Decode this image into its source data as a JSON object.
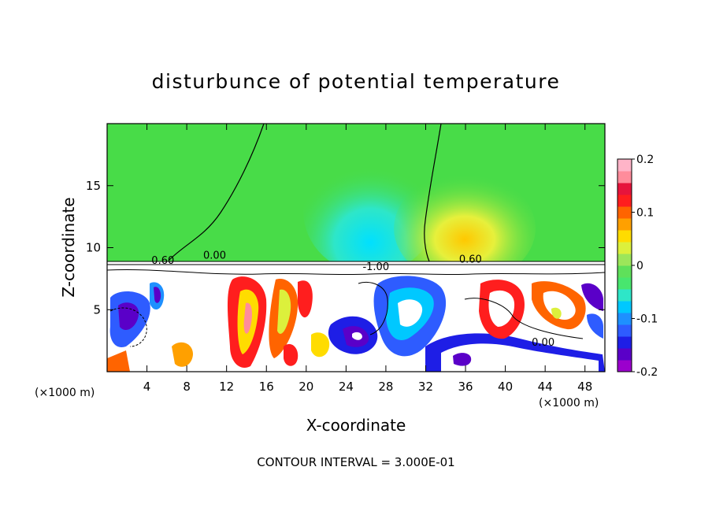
{
  "chart_data": {
    "type": "heatmap",
    "title": "disturbunce of potential temperature",
    "xlabel": "X-coordinate",
    "ylabel": "Z-coordinate",
    "x_unit": "(×1000 m)",
    "y_unit": "(×1000 m)",
    "xlim": [
      0,
      50
    ],
    "ylim": [
      0,
      20
    ],
    "x_ticks": [
      4,
      8,
      12,
      16,
      20,
      24,
      28,
      32,
      36,
      40,
      44,
      48
    ],
    "y_ticks": [
      5,
      10,
      15
    ],
    "colorbar": {
      "range": [
        -0.2,
        0.2
      ],
      "tick_values": [
        0.2,
        0.1,
        0,
        -0.1,
        -0.2
      ],
      "tick_labels": [
        "0.2",
        "0.1",
        "0",
        "-0.1",
        "-0.2"
      ],
      "colors": [
        "#9b00cd",
        "#5a00c8",
        "#1e1ee6",
        "#2e5cff",
        "#1e90ff",
        "#00c8ff",
        "#2ee6c8",
        "#48e66e",
        "#5fe05a",
        "#9ce65a",
        "#dcf03c",
        "#ffdc00",
        "#ffa000",
        "#ff6400",
        "#ff1e1e",
        "#e6143c",
        "#ff8c9b",
        "#ffb4c8"
      ]
    },
    "contour_labels": [
      {
        "x": 5.6,
        "z": 8.7,
        "label": "0.60"
      },
      {
        "x": 10.8,
        "z": 9.1,
        "label": "0.00"
      },
      {
        "x": 27.0,
        "z": 8.2,
        "label": "-1.00"
      },
      {
        "x": 36.5,
        "z": 8.8,
        "label": "0.60"
      },
      {
        "x": 43.8,
        "z": 2.1,
        "label": "0.00"
      }
    ],
    "annotation": "CONTOUR INTERVAL = 3.000E-01"
  }
}
